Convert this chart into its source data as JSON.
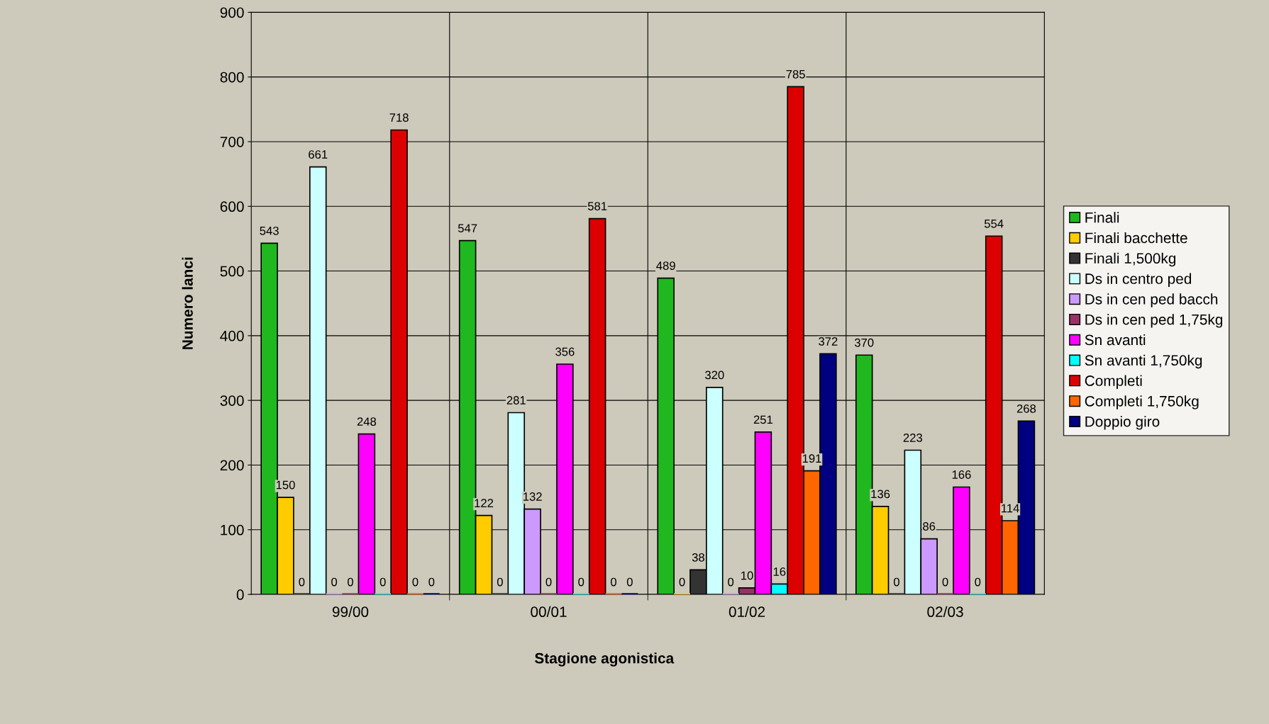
{
  "chart_data": {
    "type": "bar",
    "xlabel": "Stagione agonistica",
    "ylabel": "Numero lanci",
    "categories": [
      "99/00",
      "00/01",
      "01/02",
      "02/03"
    ],
    "series": [
      {
        "name": "Finali",
        "color": "#1fb81f",
        "values": [
          543,
          547,
          489,
          370
        ]
      },
      {
        "name": "Finali bacchette",
        "color": "#ffcc00",
        "values": [
          150,
          122,
          0,
          136
        ]
      },
      {
        "name": "Finali 1,500kg",
        "color": "#333333",
        "values": [
          0,
          0,
          38,
          0
        ]
      },
      {
        "name": "Ds in centro ped",
        "color": "#ccffff",
        "values": [
          661,
          281,
          320,
          223
        ]
      },
      {
        "name": "Ds in cen ped bacch",
        "color": "#cc99ff",
        "values": [
          0,
          132,
          0,
          86
        ]
      },
      {
        "name": "Ds in cen ped 1,75kg",
        "color": "#993366",
        "values": [
          0,
          0,
          10,
          0
        ]
      },
      {
        "name": "Sn avanti",
        "color": "#ff00ff",
        "values": [
          248,
          356,
          251,
          166
        ]
      },
      {
        "name": "Sn avanti 1,750kg",
        "color": "#00ffff",
        "values": [
          0,
          0,
          16,
          0
        ]
      },
      {
        "name": "Completi",
        "color": "#dd0000",
        "values": [
          718,
          581,
          785,
          554
        ]
      },
      {
        "name": "Completi 1,750kg",
        "color": "#ff6600",
        "values": [
          0,
          0,
          191,
          114
        ]
      },
      {
        "name": "Doppio giro",
        "color": "#000080",
        "values": [
          0,
          0,
          372,
          268
        ]
      }
    ],
    "ylim": [
      0,
      900
    ],
    "yticks": [
      0,
      100,
      200,
      300,
      400,
      500,
      600,
      700,
      800,
      900
    ],
    "grid": true,
    "legend": "right",
    "data_labels": true
  }
}
